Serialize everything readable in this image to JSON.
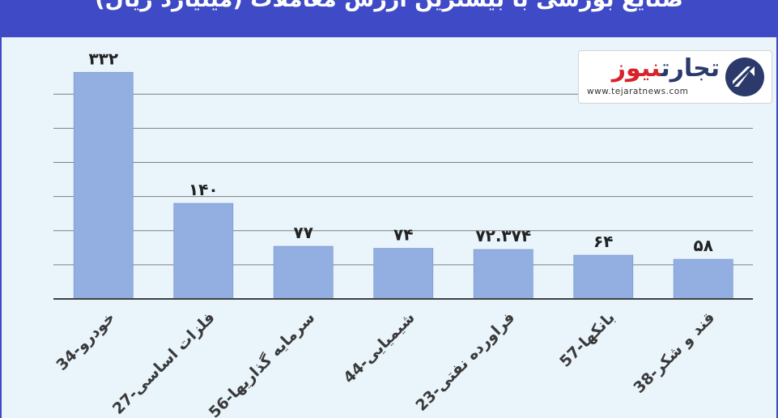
{
  "header": {
    "title": "صنایع بورسی با بیشترین ارزش معاملات (میلیارد ریال)"
  },
  "logo": {
    "brand_part_1": "تجارت",
    "brand_part_2": "نیوز",
    "url": "www.tejaratnews.com"
  },
  "colors": {
    "header": "#3f4ac6",
    "background": "#e9f4fb",
    "bar": "#93aee0",
    "brand_dark": "#2b3a6b",
    "brand_red": "#d8232a"
  },
  "chart_data": {
    "type": "bar",
    "title": "صنایع بورسی با بیشترین ارزش معاملات (میلیارد ریال)",
    "categories": [
      "34-خودرو",
      "27-فلزات اساسی",
      "56-سرمایه گذاریها",
      "44-شیمیایی",
      "23-فراورده نفتی",
      "57-بانکها",
      "38-قند و شکر"
    ],
    "values": [
      332,
      140,
      77,
      74,
      72.374,
      64,
      58
    ],
    "value_labels": [
      "۳۳۲",
      "۱۴۰",
      "۷۷",
      "۷۴",
      "۷۲.۳۷۴",
      "۶۴",
      "۵۸"
    ],
    "ylim": [
      0,
      330
    ],
    "grid": true,
    "legend": "none"
  }
}
